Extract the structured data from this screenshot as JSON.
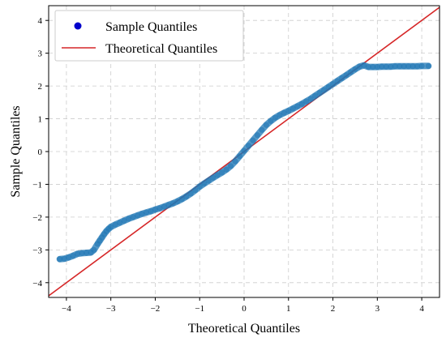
{
  "chart_data": {
    "type": "scatter",
    "title": "",
    "xlabel": "Theoretical Quantiles",
    "ylabel": "Sample Quantiles",
    "xlim": [
      -4.4,
      4.4
    ],
    "ylim": [
      -4.45,
      4.45
    ],
    "xticks": [
      -4,
      -3,
      -2,
      -1,
      0,
      1,
      2,
      3,
      4
    ],
    "yticks": [
      -4,
      -3,
      -2,
      -1,
      0,
      1,
      2,
      3,
      4
    ],
    "grid": true,
    "legend_position": "top-left",
    "series": [
      {
        "name": "Sample Quantiles",
        "kind": "scatter",
        "color": "#1f77b4",
        "legend_color": "#0000cc",
        "x": [
          -4.15,
          -4.05,
          -3.95,
          -3.85,
          -3.75,
          -3.65,
          -3.55,
          -3.45,
          -3.38,
          -3.3,
          -3.25,
          -3.2,
          -3.15,
          -3.1,
          -3.05,
          -3.0,
          -2.9,
          -2.8,
          -2.7,
          -2.6,
          -2.5,
          -2.4,
          -2.3,
          -2.2,
          -2.1,
          -2.0,
          -1.9,
          -1.8,
          -1.7,
          -1.6,
          -1.5,
          -1.4,
          -1.3,
          -1.2,
          -1.1,
          -1.0,
          -0.9,
          -0.8,
          -0.7,
          -0.6,
          -0.5,
          -0.4,
          -0.3,
          -0.2,
          -0.1,
          0.0,
          0.1,
          0.2,
          0.3,
          0.4,
          0.5,
          0.6,
          0.7,
          0.8,
          0.9,
          1.0,
          1.1,
          1.2,
          1.3,
          1.4,
          1.5,
          1.6,
          1.7,
          1.8,
          1.9,
          2.0,
          2.1,
          2.2,
          2.3,
          2.4,
          2.5,
          2.6,
          2.7,
          2.8,
          2.9,
          3.0,
          3.1,
          3.2,
          3.3,
          3.4,
          3.5,
          3.6,
          3.7,
          3.8,
          3.9,
          4.0,
          4.15
        ],
        "y": [
          -3.28,
          -3.27,
          -3.23,
          -3.18,
          -3.12,
          -3.1,
          -3.09,
          -3.08,
          -3.0,
          -2.82,
          -2.72,
          -2.62,
          -2.52,
          -2.43,
          -2.36,
          -2.3,
          -2.23,
          -2.17,
          -2.11,
          -2.05,
          -2.0,
          -1.95,
          -1.9,
          -1.86,
          -1.82,
          -1.77,
          -1.73,
          -1.68,
          -1.63,
          -1.58,
          -1.52,
          -1.45,
          -1.37,
          -1.28,
          -1.18,
          -1.07,
          -0.98,
          -0.89,
          -0.8,
          -0.72,
          -0.64,
          -0.55,
          -0.44,
          -0.3,
          -0.14,
          0.02,
          0.18,
          0.34,
          0.5,
          0.66,
          0.81,
          0.93,
          1.03,
          1.11,
          1.18,
          1.24,
          1.31,
          1.38,
          1.45,
          1.53,
          1.61,
          1.7,
          1.79,
          1.88,
          1.97,
          2.06,
          2.15,
          2.24,
          2.33,
          2.42,
          2.51,
          2.59,
          2.63,
          2.58,
          2.58,
          2.58,
          2.59,
          2.59,
          2.59,
          2.6,
          2.6,
          2.6,
          2.6,
          2.6,
          2.6,
          2.61,
          2.61
        ]
      },
      {
        "name": "Theoretical Quantiles",
        "kind": "line",
        "color": "#d62728",
        "x": [
          -4.4,
          4.4
        ],
        "y": [
          -4.4,
          4.4
        ]
      }
    ]
  }
}
